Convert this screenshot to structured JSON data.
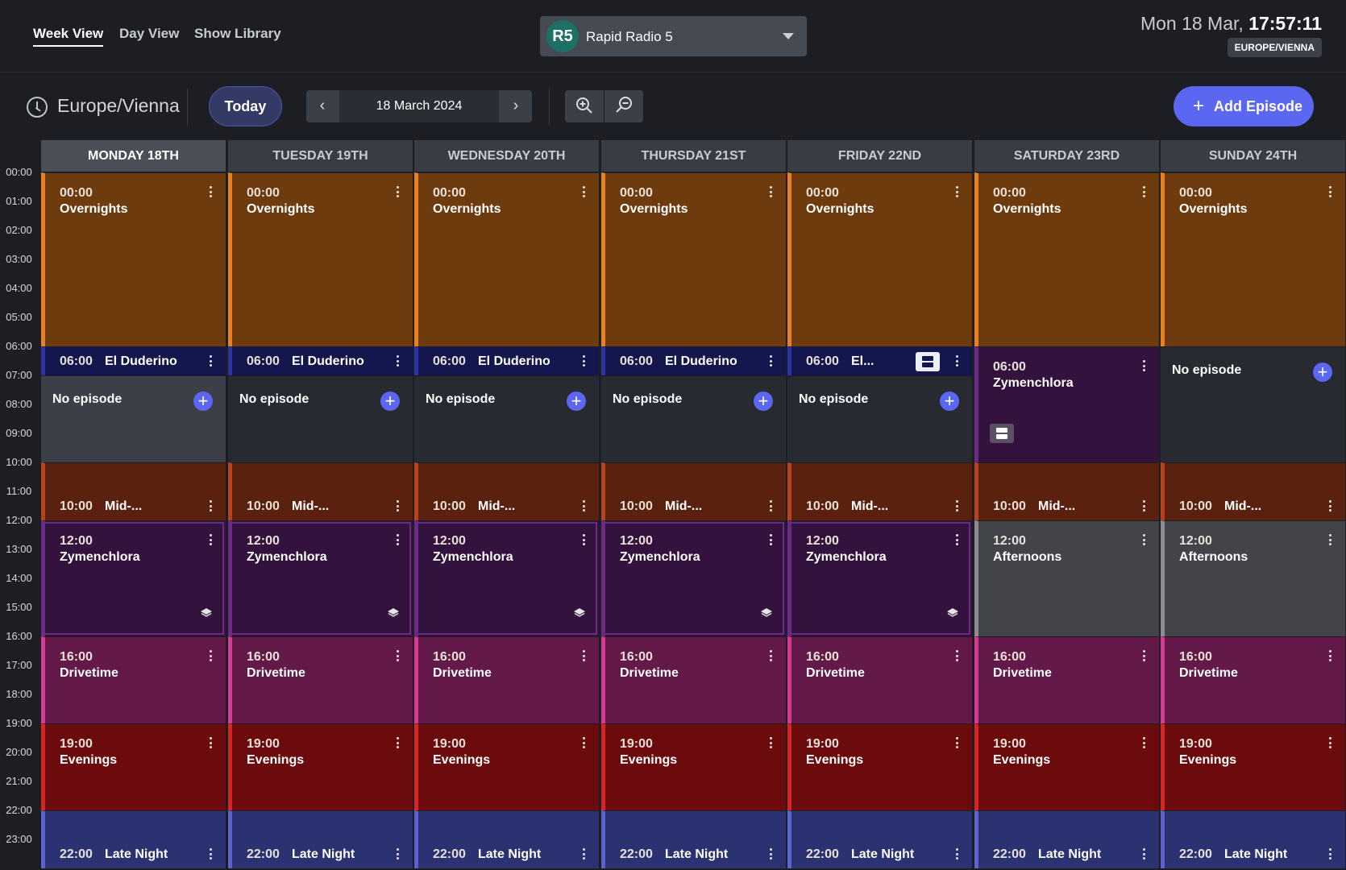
{
  "nav": {
    "tabs": [
      {
        "label": "Week View",
        "active": true
      },
      {
        "label": "Day View"
      },
      {
        "label": "Show Library"
      }
    ]
  },
  "station": {
    "code": "R5",
    "name": "Rapid Radio 5"
  },
  "clock": {
    "date": "Mon 18 Mar,",
    "time": "17:57:11",
    "timezone": "EUROPE/VIENNA"
  },
  "toolbar": {
    "timezone": "Europe/Vienna",
    "today_label": "Today",
    "date": "18 March 2024",
    "add_label": "Add Episode"
  },
  "hours": [
    "00:00",
    "01:00",
    "02:00",
    "03:00",
    "04:00",
    "05:00",
    "06:00",
    "07:00",
    "08:00",
    "09:00",
    "10:00",
    "11:00",
    "12:00",
    "13:00",
    "14:00",
    "15:00",
    "16:00",
    "17:00",
    "18:00",
    "19:00",
    "20:00",
    "21:00",
    "22:00",
    "23:00"
  ],
  "days": [
    "MONDAY 18TH",
    "TUESDAY 19TH",
    "WEDNESDAY 20TH",
    "THURSDAY 21ST",
    "FRIDAY 22ND",
    "SATURDAY 23RD",
    "SUNDAY 24TH"
  ],
  "empty_label": "No episode",
  "shows": {
    "overnights": {
      "time": "00:00",
      "name": "Overnights",
      "color": "#6e3b0e",
      "accent": "#e8801f"
    },
    "el_duderino": {
      "time": "06:00",
      "name": "El Duderino",
      "name_truncated": "El...",
      "color": "#14174d",
      "accent": "#2b33a6"
    },
    "midday": {
      "time": "10:00",
      "name": "Mid-...",
      "color": "#5a210f",
      "accent": "#b8421b"
    },
    "zymenchlora": {
      "time": "12:00",
      "time_weekend": "06:00",
      "name": "Zymenchlora",
      "color": "#33123d",
      "accent": "#6a2a85"
    },
    "afternoons": {
      "time": "12:00",
      "name": "Afternoons",
      "color": "#42444a",
      "accent": "#8b8d92"
    },
    "drivetime": {
      "time": "16:00",
      "name": "Drivetime",
      "color": "#641a49",
      "accent": "#d63a93"
    },
    "evenings": {
      "time": "19:00",
      "name": "Evenings",
      "color": "#6c0b0d",
      "accent": "#d82523"
    },
    "late_night": {
      "time": "22:00",
      "name": "Late Night",
      "color": "#2b3272",
      "accent": "#5a63d0"
    }
  }
}
